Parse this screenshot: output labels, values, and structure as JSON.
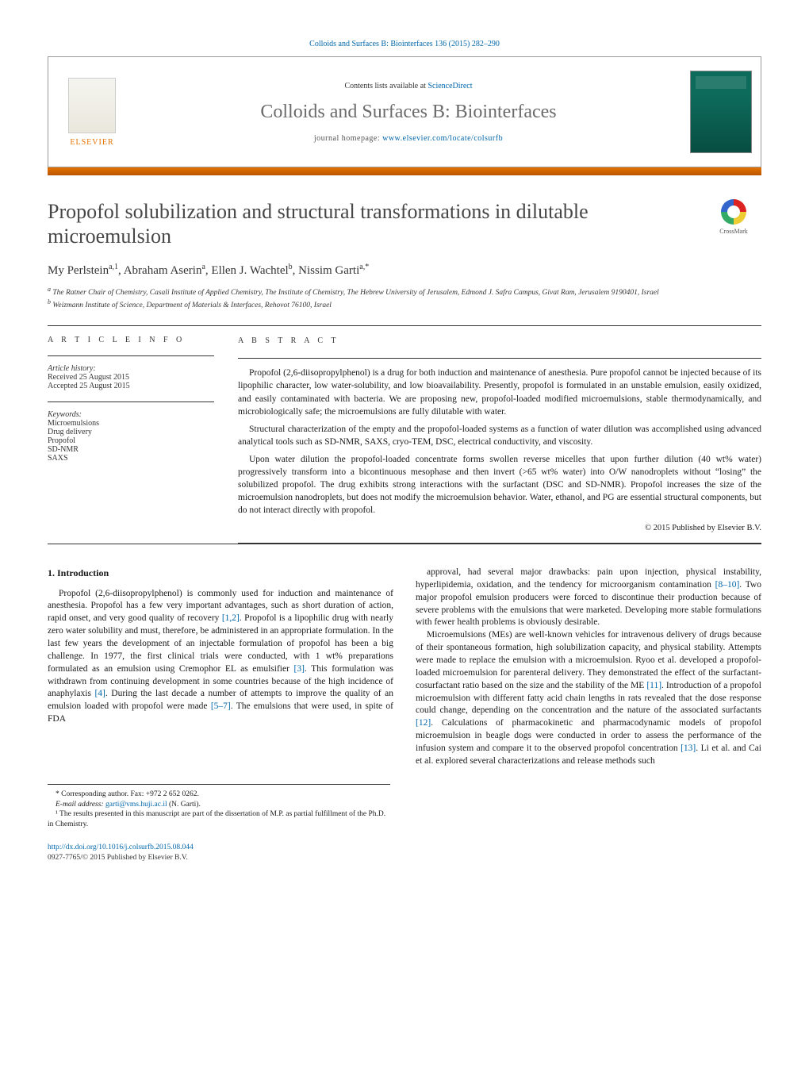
{
  "colors": {
    "link": "#0066aa",
    "orange": "#e57200",
    "grey_title": "#474747",
    "journal_grey": "#6b6b6b",
    "rule": "#333333",
    "background": "#ffffff"
  },
  "typography": {
    "body_font": "Georgia, 'Times New Roman', serif",
    "title_fontsize": 26,
    "journal_fontsize": 24,
    "body_fontsize": 11.5,
    "small_fontsize": 10
  },
  "header": {
    "top_link_prefix": "Colloids and Surfaces B: Biointerfaces 136 (2015) 282–290",
    "contents_line_text": "Contents lists available at ",
    "contents_line_link": "ScienceDirect",
    "journal_name": "Colloids and Surfaces B: Biointerfaces",
    "homepage_label": "journal homepage: ",
    "homepage_url": "www.elsevier.com/locate/colsurfb",
    "elsevier_label": "ELSEVIER"
  },
  "crossmark_label": "CrossMark",
  "title": "Propofol solubilization and structural transformations in dilutable microemulsion",
  "authors_html": "My Perlstein<sup>a,1</sup>, Abraham Aserin<sup>a</sup>, Ellen J. Wachtel<sup>b</sup>, Nissim Garti<sup>a,*</sup>",
  "affiliations": {
    "a": "The Ratner Chair of Chemistry, Casali Institute of Applied Chemistry, The Institute of Chemistry, The Hebrew University of Jerusalem, Edmond J. Safra Campus, Givat Ram, Jerusalem 9190401, Israel",
    "b": "Weizmann Institute of Science, Department of Materials & Interfaces, Rehovot 76100, Israel"
  },
  "article_info": {
    "heading": "A R T I C L E   I N F O",
    "history_label": "Article history:",
    "history_lines": [
      "Received 25 August 2015",
      "Accepted 25 August 2015"
    ],
    "keywords_label": "Keywords:",
    "keywords": [
      "Microemulsions",
      "Drug delivery",
      "Propofol",
      "SD-NMR",
      "SAXS"
    ]
  },
  "abstract": {
    "heading": "A B S T R A C T",
    "paragraphs": [
      "Propofol (2,6-diisopropylphenol) is a drug for both induction and maintenance of anesthesia. Pure propofol cannot be injected because of its lipophilic character, low water-solubility, and low bioavailability. Presently, propofol is formulated in an unstable emulsion, easily oxidized, and easily contaminated with bacteria. We are proposing new, propofol-loaded modified microemulsions, stable thermodynamically, and microbiologically safe; the microemulsions are fully dilutable with water.",
      "Structural characterization of the empty and the propofol-loaded systems as a function of water dilution was accomplished using advanced analytical tools such as SD-NMR, SAXS, cryo-TEM, DSC, electrical conductivity, and viscosity.",
      "Upon water dilution the propofol-loaded concentrate forms swollen reverse micelles that upon further dilution (40 wt% water) progressively transform into a bicontinuous mesophase and then invert (>65 wt% water) into O/W nanodroplets without “losing” the solubilized propofol. The drug exhibits strong interactions with the surfactant (DSC and SD-NMR). Propofol increases the size of the microemulsion nanodroplets, but does not modify the microemulsion behavior. Water, ethanol, and PG are essential structural components, but do not interact directly with propofol."
    ],
    "copyright": "© 2015 Published by Elsevier B.V."
  },
  "body": {
    "section_number": "1.",
    "section_title": "Introduction",
    "left_column": "Propofol (2,6-diisopropylphenol) is commonly used for induction and maintenance of anesthesia. Propofol has a few very important advantages, such as short duration of action, rapid onset, and very good quality of recovery [1,2]. Propofol is a lipophilic drug with nearly zero water solubility and must, therefore, be administered in an appropriate formulation. In the last few years the development of an injectable formulation of propofol has been a big challenge. In 1977, the first clinical trials were conducted, with 1 wt% preparations formulated as an emulsion using Cremophor EL as emulsifier [3]. This formulation was withdrawn from continuing development in some countries because of the high incidence of anaphylaxis [4]. During the last decade a number of attempts to improve the quality of an emulsion loaded with propofol were made [5–7]. The emulsions that were used, in spite of FDA",
    "right_column_p1": "approval, had several major drawbacks: pain upon injection, physical instability, hyperlipidemia, oxidation, and the tendency for microorganism contamination [8–10]. Two major propofol emulsion producers were forced to discontinue their production because of severe problems with the emulsions that were marketed. Developing more stable formulations with fewer health problems is obviously desirable.",
    "right_column_p2": "Microemulsions (MEs) are well-known vehicles for intravenous delivery of drugs because of their spontaneous formation, high solubilization capacity, and physical stability. Attempts were made to replace the emulsion with a microemulsion. Ryoo et al. developed a propofol-loaded microemulsion for parenteral delivery. They demonstrated the effect of the surfactant-cosurfactant ratio based on the size and the stability of the ME [11]. Introduction of a propofol microemulsion with different fatty acid chain lengths in rats revealed that the dose response could change, depending on the concentration and the nature of the associated surfactants [12]. Calculations of pharmacokinetic and pharmacodynamic models of propofol microemulsion in beagle dogs were conducted in order to assess the performance of the infusion system and compare it to the observed propofol concentration [13]. Li et al. and Cai et al. explored several characterizations and release methods such",
    "ref_links": [
      "[1,2]",
      "[3]",
      "[4]",
      "[5–7]",
      "[8–10]",
      "[11]",
      "[12]",
      "[13]"
    ]
  },
  "footnotes": {
    "corr": "* Corresponding author. Fax: +972 2 652 0262.",
    "email_label": "E-mail address: ",
    "email": "garti@vms.huji.ac.il",
    "email_suffix": " (N. Garti).",
    "note1": "¹ The results presented in this manuscript are part of the dissertation of M.P. as partial fulfillment of the Ph.D. in Chemistry."
  },
  "footer": {
    "doi": "http://dx.doi.org/10.1016/j.colsurfb.2015.08.044",
    "issn_line": "0927-7765/© 2015 Published by Elsevier B.V."
  }
}
